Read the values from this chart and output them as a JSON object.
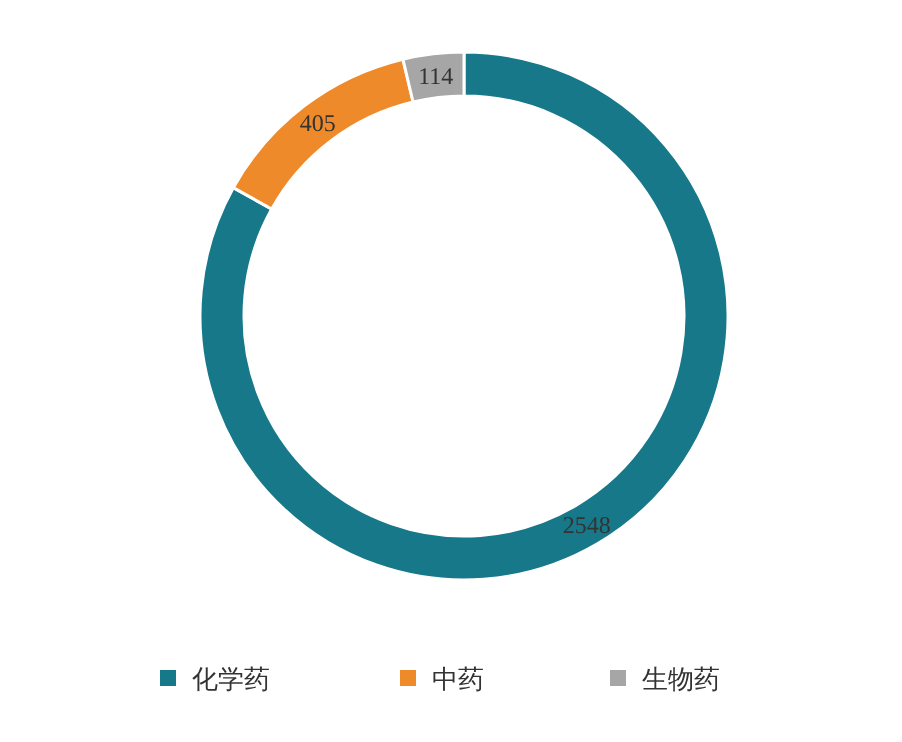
{
  "chart_data": {
    "type": "donut",
    "categories": [
      "化学药",
      "中药",
      "生物药"
    ],
    "values": [
      2548,
      405,
      114
    ],
    "colors": [
      "#17788a",
      "#ef8a2b",
      "#a6a6a6"
    ],
    "data_labels": true,
    "legend": "bottom"
  }
}
